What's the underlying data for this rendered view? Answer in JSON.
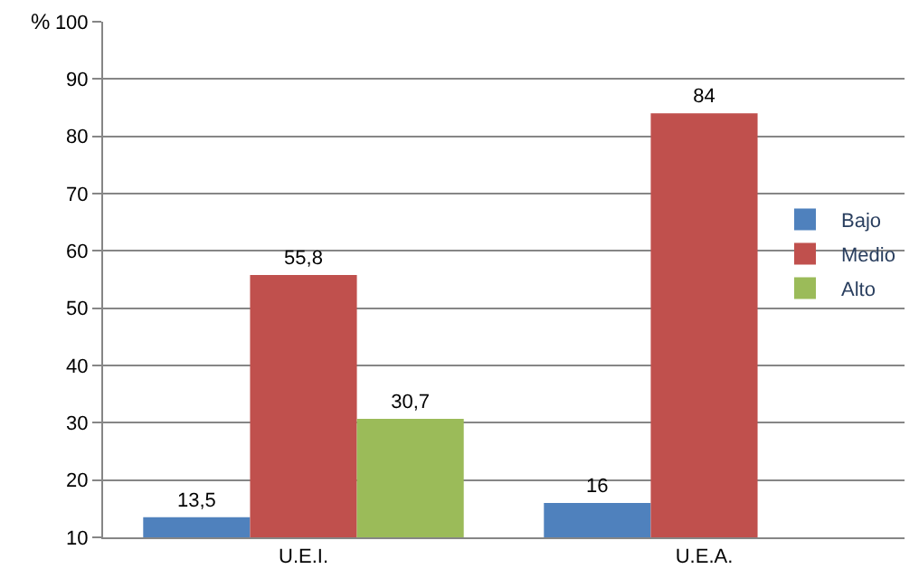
{
  "chart_data": {
    "type": "bar",
    "ylabel": "%",
    "categories": [
      "U.E.I.",
      "U.E.A."
    ],
    "series": [
      {
        "name": "Bajo",
        "color": "#4f81bd",
        "values": [
          13.5,
          16
        ],
        "value_labels": [
          "13,5",
          "16"
        ]
      },
      {
        "name": "Medio",
        "color": "#c0504d",
        "values": [
          55.8,
          84
        ],
        "value_labels": [
          "55,8",
          "84"
        ]
      },
      {
        "name": "Alto",
        "color": "#9bbb59",
        "values": [
          30.7,
          null
        ],
        "value_labels": [
          "30,7",
          null
        ]
      }
    ],
    "ylim": [
      10,
      100
    ],
    "yticks": [
      10,
      20,
      30,
      40,
      50,
      60,
      70,
      80,
      90,
      100
    ],
    "grid": "y",
    "legend": "right"
  }
}
